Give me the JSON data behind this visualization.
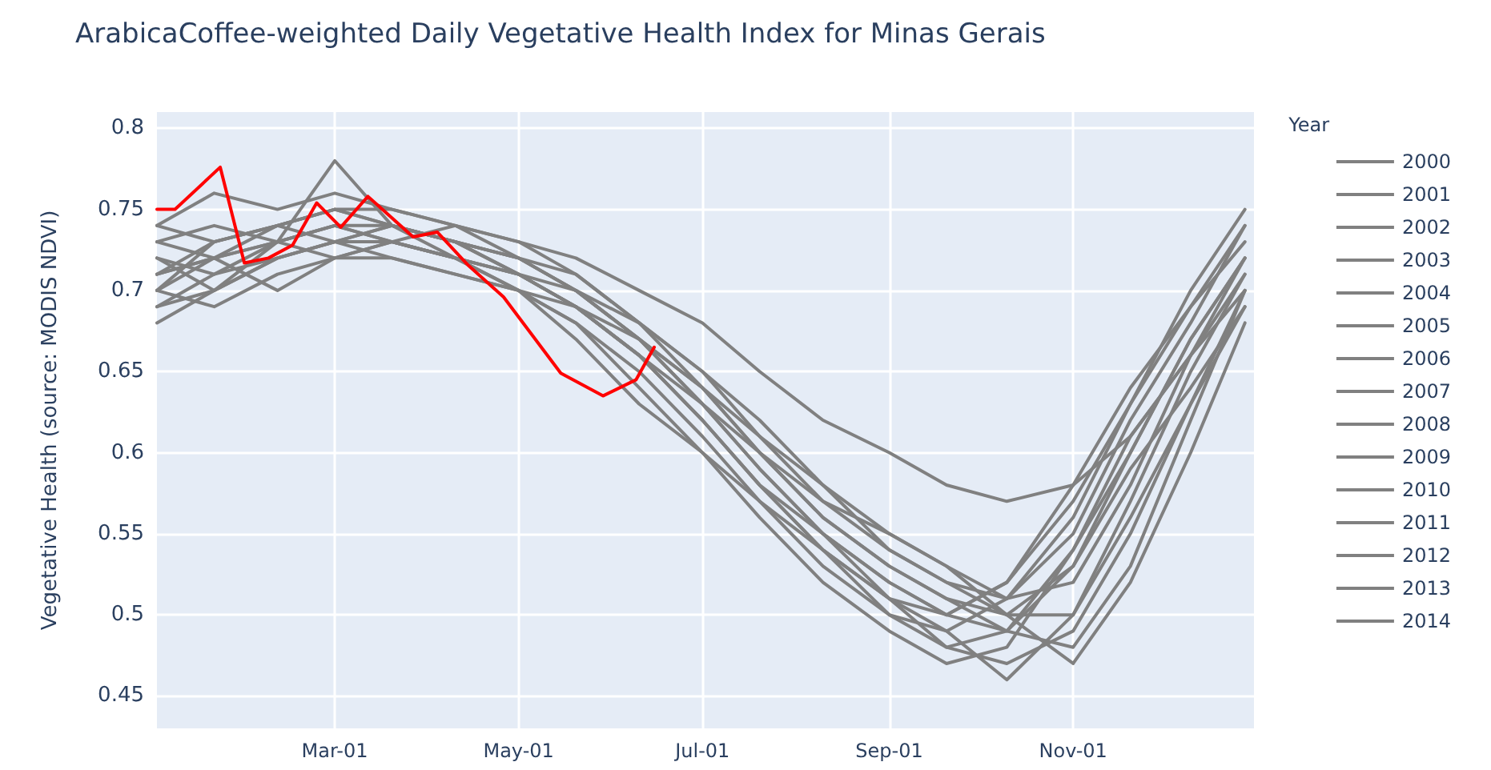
{
  "chart_data": {
    "type": "line",
    "title": "ArabicaCoffee-weighted Daily Vegetative Health Index for Minas Gerais",
    "ylabel": "Vegetative Health (source: MODIS NDVI)",
    "legend_title": "Year",
    "x": [
      "--01-01",
      "--01-20",
      "--02-10",
      "--03-01",
      "--03-20",
      "--04-10",
      "--05-01",
      "--05-20",
      "--06-10",
      "--07-01",
      "--07-20",
      "--08-10",
      "--09-01",
      "--09-20",
      "--10-10",
      "--11-01",
      "--11-20",
      "--12-10",
      "--12-28"
    ],
    "series": [
      {
        "name": "2000",
        "color": "#808080",
        "values": [
          0.72,
          0.71,
          0.73,
          0.74,
          0.73,
          0.72,
          0.71,
          0.69,
          0.66,
          0.62,
          0.58,
          0.55,
          0.52,
          0.5,
          0.49,
          0.53,
          0.6,
          0.67,
          0.72
        ]
      },
      {
        "name": "2001",
        "color": "#808080",
        "values": [
          0.7,
          0.73,
          0.74,
          0.75,
          0.74,
          0.73,
          0.72,
          0.7,
          0.67,
          0.64,
          0.6,
          0.56,
          0.53,
          0.51,
          0.5,
          0.5,
          0.56,
          0.63,
          0.7
        ]
      },
      {
        "name": "2002",
        "color": "#808080",
        "values": [
          0.74,
          0.76,
          0.75,
          0.76,
          0.75,
          0.74,
          0.73,
          0.71,
          0.68,
          0.64,
          0.61,
          0.57,
          0.54,
          0.52,
          0.51,
          0.55,
          0.62,
          0.68,
          0.74
        ]
      },
      {
        "name": "2003",
        "color": "#808080",
        "values": [
          0.68,
          0.7,
          0.72,
          0.73,
          0.74,
          0.72,
          0.7,
          0.67,
          0.63,
          0.6,
          0.56,
          0.52,
          0.49,
          0.47,
          0.48,
          0.54,
          0.61,
          0.66,
          0.71
        ]
      },
      {
        "name": "2004",
        "color": "#808080",
        "values": [
          0.71,
          0.72,
          0.7,
          0.72,
          0.73,
          0.74,
          0.72,
          0.7,
          0.68,
          0.65,
          0.62,
          0.58,
          0.55,
          0.53,
          0.5,
          0.47,
          0.52,
          0.6,
          0.68
        ]
      },
      {
        "name": "2005",
        "color": "#808080",
        "values": [
          0.73,
          0.74,
          0.73,
          0.74,
          0.73,
          0.72,
          0.7,
          0.68,
          0.65,
          0.61,
          0.57,
          0.54,
          0.51,
          0.49,
          0.46,
          0.5,
          0.57,
          0.65,
          0.71
        ]
      },
      {
        "name": "2006",
        "color": "#808080",
        "values": [
          0.7,
          0.69,
          0.71,
          0.72,
          0.72,
          0.71,
          0.7,
          0.69,
          0.66,
          0.63,
          0.59,
          0.55,
          0.52,
          0.5,
          0.52,
          0.58,
          0.64,
          0.69,
          0.73
        ]
      },
      {
        "name": "2007",
        "color": "#808080",
        "values": [
          0.69,
          0.71,
          0.72,
          0.73,
          0.74,
          0.73,
          0.71,
          0.69,
          0.66,
          0.62,
          0.58,
          0.54,
          0.5,
          0.48,
          0.47,
          0.49,
          0.55,
          0.63,
          0.69
        ]
      },
      {
        "name": "2008",
        "color": "#808080",
        "values": [
          0.72,
          0.7,
          0.73,
          0.78,
          0.74,
          0.73,
          0.71,
          0.69,
          0.67,
          0.64,
          0.6,
          0.57,
          0.55,
          0.53,
          0.51,
          0.52,
          0.58,
          0.66,
          0.72
        ]
      },
      {
        "name": "2009",
        "color": "#808080",
        "values": [
          0.71,
          0.73,
          0.74,
          0.75,
          0.75,
          0.74,
          0.73,
          0.72,
          0.7,
          0.68,
          0.65,
          0.62,
          0.6,
          0.58,
          0.57,
          0.58,
          0.61,
          0.66,
          0.7
        ]
      },
      {
        "name": "2010",
        "color": "#808080",
        "values": [
          0.73,
          0.72,
          0.74,
          0.73,
          0.72,
          0.71,
          0.7,
          0.68,
          0.64,
          0.6,
          0.57,
          0.53,
          0.5,
          0.49,
          0.51,
          0.56,
          0.63,
          0.69,
          0.74
        ]
      },
      {
        "name": "2011",
        "color": "#808080",
        "values": [
          0.7,
          0.72,
          0.73,
          0.72,
          0.73,
          0.72,
          0.71,
          0.7,
          0.67,
          0.63,
          0.6,
          0.56,
          0.53,
          0.51,
          0.49,
          0.48,
          0.53,
          0.62,
          0.7
        ]
      },
      {
        "name": "2012",
        "color": "#808080",
        "values": [
          0.74,
          0.73,
          0.74,
          0.75,
          0.74,
          0.73,
          0.72,
          0.7,
          0.67,
          0.63,
          0.59,
          0.55,
          0.51,
          0.48,
          0.49,
          0.54,
          0.6,
          0.67,
          0.72
        ]
      },
      {
        "name": "2013",
        "color": "#808080",
        "values": [
          0.69,
          0.7,
          0.72,
          0.73,
          0.73,
          0.72,
          0.71,
          0.69,
          0.66,
          0.62,
          0.58,
          0.54,
          0.51,
          0.5,
          0.52,
          0.57,
          0.63,
          0.7,
          0.75
        ]
      },
      {
        "name": "2014",
        "color": "#808080",
        "values": [
          0.71,
          0.72,
          0.73,
          0.74,
          0.74,
          0.73,
          0.72,
          0.71,
          0.68,
          0.65,
          0.61,
          0.58,
          0.54,
          0.52,
          0.5,
          0.53,
          0.59,
          0.64,
          0.69
        ]
      },
      {
        "color": "#ff0000",
        "x": [
          "--01-01",
          "--01-07",
          "--01-22",
          "--01-30",
          "--02-07",
          "--02-15",
          "--02-23",
          "--03-03",
          "--03-12",
          "--03-27",
          "--04-04",
          "--04-14",
          "--04-26",
          "--05-15",
          "--05-29",
          "--06-09",
          "--06-15"
        ],
        "values": [
          0.75,
          0.75,
          0.776,
          0.717,
          0.72,
          0.728,
          0.754,
          0.739,
          0.758,
          0.733,
          0.736,
          0.716,
          0.696,
          0.649,
          0.635,
          0.645,
          0.665
        ]
      }
    ],
    "xlim": [
      "--01-01",
      "--12-31"
    ],
    "xticks": [
      {
        "value": "--03-01",
        "label": "Mar-01"
      },
      {
        "value": "--05-01",
        "label": "May-01"
      },
      {
        "value": "--07-01",
        "label": "Jul-01"
      },
      {
        "value": "--09-01",
        "label": "Sep-01"
      },
      {
        "value": "--11-01",
        "label": "Nov-01"
      }
    ],
    "ylim": [
      0.43,
      0.81
    ],
    "yticks": [
      0.45,
      0.5,
      0.55,
      0.6,
      0.65,
      0.7,
      0.75,
      0.8
    ],
    "grid": true,
    "legend": "right",
    "marker": "none",
    "line_style": "solid"
  }
}
